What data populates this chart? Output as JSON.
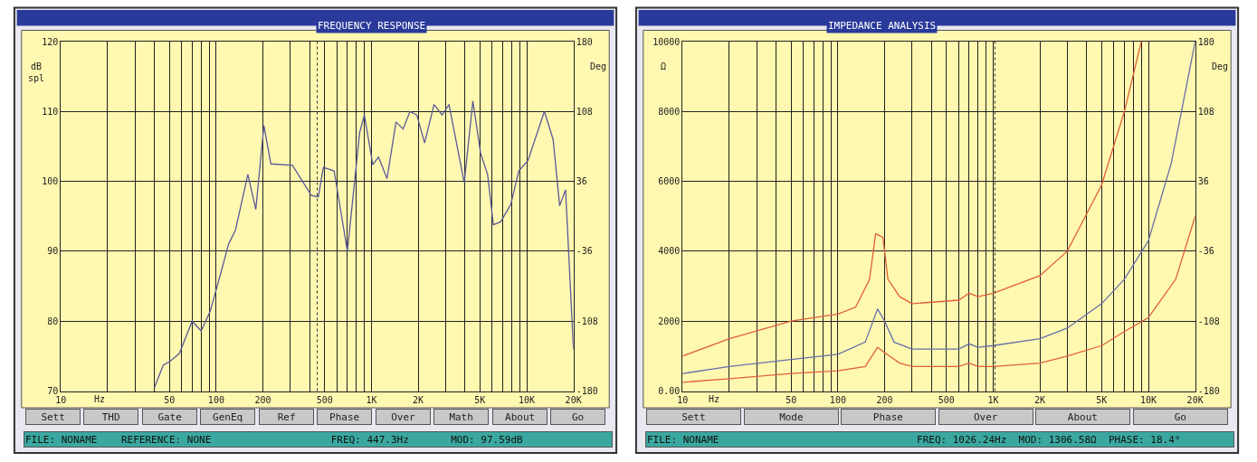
{
  "chart_data": [
    {
      "type": "line",
      "title": "FREQUENCY RESPONSE",
      "xlabel": "Hz",
      "ylabel": "dB\nspl",
      "y2label": "Deg",
      "log": "x",
      "grid": true,
      "marker": "none",
      "line_style": "solid",
      "xlim": [
        10,
        20000
      ],
      "xticks": [
        10,
        {
          "value": 20,
          "label": null
        },
        {
          "value": 30,
          "label": null
        },
        {
          "value": 40,
          "label": null
        },
        50,
        {
          "value": 60,
          "label": null
        },
        {
          "value": 70,
          "label": null
        },
        {
          "value": 80,
          "label": null
        },
        {
          "value": 90,
          "label": null
        },
        100,
        200,
        {
          "value": 300,
          "label": null
        },
        {
          "value": 400,
          "label": null
        },
        500,
        {
          "value": 600,
          "label": null
        },
        {
          "value": 700,
          "label": null
        },
        {
          "value": 800,
          "label": null
        },
        {
          "value": 900,
          "label": null
        },
        {
          "value": 1000,
          "label": "1K"
        },
        {
          "value": 2000,
          "label": "2K"
        },
        {
          "value": 3000,
          "label": null
        },
        {
          "value": 4000,
          "label": null
        },
        {
          "value": 5000,
          "label": "5K"
        },
        {
          "value": 6000,
          "label": null
        },
        {
          "value": 7000,
          "label": null
        },
        {
          "value": 8000,
          "label": null
        },
        {
          "value": 9000,
          "label": null
        },
        {
          "value": 10000,
          "label": "10K"
        },
        {
          "value": 20000,
          "label": "20K"
        }
      ],
      "ylim": [
        70,
        120
      ],
      "yticks": [
        70,
        80,
        90,
        100,
        110,
        120
      ],
      "y2lim": [
        -180,
        180
      ],
      "y2ticks": [
        -180,
        -108,
        -36,
        36,
        108,
        180
      ],
      "ref_lines": [
        {
          "axis": "x",
          "value": 447.3,
          "color": "#333333",
          "line_style": "dotted"
        }
      ],
      "series": [
        {
          "color": "#5a5a9a",
          "x": [
            40,
            45.6,
            50.8,
            58,
            70,
            80,
            91.5,
            109,
            120,
            133,
            160,
            180,
            203,
            225,
            310,
            410,
            455,
            490,
            575,
            700,
            840,
            900,
            1020,
            1110,
            1260,
            1440,
            1600,
            1770,
            1960,
            2200,
            2530,
            2850,
            3160,
            3960,
            4500,
            5050,
            5600,
            6100,
            6800,
            7900,
            8900,
            10200,
            13000,
            14800,
            16300,
            17800,
            20000
          ],
          "values": [
            70.5,
            73.7,
            74.3,
            75.4,
            80,
            78.6,
            81.4,
            87.5,
            91,
            93,
            101,
            96,
            108,
            102.5,
            102.3,
            98,
            97.8,
            102,
            101.5,
            90,
            107,
            109.5,
            102.4,
            103.5,
            100.4,
            108.5,
            107.5,
            110,
            109.5,
            105.5,
            111,
            109.5,
            111,
            99.8,
            111.5,
            104,
            101,
            93.8,
            94.2,
            96.7,
            101.5,
            103,
            110,
            106,
            96.5,
            98.8,
            76
          ]
        }
      ],
      "annotations": [
        "Sett",
        "THD",
        "Gate",
        "GenEq",
        "Ref",
        "Phase",
        "Over",
        "Math",
        "About",
        "Go",
        "FILE: NONAME    REFERENCE: NONE                    FREQ: 447.3Hz       MOD: 97.59dB"
      ]
    },
    {
      "type": "line",
      "title": "IMPEDANCE ANALYSIS",
      "xlabel": "Hz",
      "ylabel": "Ω",
      "y2label": "Deg",
      "log": "x",
      "grid": true,
      "marker": "none",
      "line_style": "solid",
      "xlim": [
        10,
        20000
      ],
      "xticks": [
        10,
        {
          "value": 20,
          "label": null
        },
        {
          "value": 30,
          "label": null
        },
        {
          "value": 40,
          "label": null
        },
        50,
        {
          "value": 60,
          "label": null
        },
        {
          "value": 70,
          "label": null
        },
        {
          "value": 80,
          "label": null
        },
        {
          "value": 90,
          "label": null
        },
        100,
        200,
        {
          "value": 300,
          "label": null
        },
        {
          "value": 400,
          "label": null
        },
        500,
        {
          "value": 600,
          "label": null
        },
        {
          "value": 700,
          "label": null
        },
        {
          "value": 800,
          "label": null
        },
        {
          "value": 900,
          "label": null
        },
        {
          "value": 1000,
          "label": "1K"
        },
        {
          "value": 2000,
          "label": "2K"
        },
        {
          "value": 3000,
          "label": null
        },
        {
          "value": 4000,
          "label": null
        },
        {
          "value": 5000,
          "label": "5K"
        },
        {
          "value": 6000,
          "label": null
        },
        {
          "value": 7000,
          "label": null
        },
        {
          "value": 8000,
          "label": null
        },
        {
          "value": 9000,
          "label": null
        },
        {
          "value": 10000,
          "label": "10K"
        },
        {
          "value": 20000,
          "label": "20K"
        }
      ],
      "ylim": [
        0,
        10000
      ],
      "yticks": [
        {
          "value": 0,
          "label": "0.00"
        },
        2000,
        4000,
        6000,
        8000,
        10000
      ],
      "y2lim": [
        -180,
        180
      ],
      "y2ticks": [
        -180,
        -108,
        -36,
        36,
        108,
        180
      ],
      "ref_lines": [
        {
          "axis": "x",
          "value": 1026.24,
          "color": "#333333",
          "line_style": "dotted"
        }
      ],
      "series": [
        {
          "color": "#e0603a",
          "x": [
            10,
            20,
            50,
            100,
            130,
            160,
            175,
            195,
            210,
            250,
            300,
            600,
            700,
            800,
            1000,
            2000,
            3000,
            5000,
            7000,
            9000
          ],
          "values": [
            1000,
            1500,
            2000,
            2200,
            2400,
            3200,
            4500,
            4400,
            3200,
            2700,
            2500,
            2600,
            2800,
            2700,
            2800,
            3300,
            4000,
            5900,
            8000,
            10000
          ]
        },
        {
          "color": "#6670a8",
          "x": [
            10,
            20,
            50,
            100,
            150,
            180,
            200,
            230,
            300,
            600,
            700,
            800,
            1000,
            2000,
            3000,
            5000,
            7000,
            10000,
            14000,
            17000,
            20000
          ],
          "values": [
            500,
            700,
            900,
            1050,
            1400,
            2350,
            2000,
            1400,
            1200,
            1200,
            1350,
            1250,
            1300,
            1500,
            1800,
            2500,
            3200,
            4300,
            6500,
            8400,
            10000
          ]
        },
        {
          "color": "#e0603a",
          "x": [
            10,
            20,
            50,
            100,
            150,
            180,
            200,
            250,
            300,
            600,
            700,
            800,
            1000,
            2000,
            3000,
            5000,
            7000,
            10000,
            15000,
            20000
          ],
          "values": [
            250,
            350,
            500,
            580,
            700,
            1250,
            1100,
            800,
            700,
            700,
            800,
            700,
            700,
            800,
            1000,
            1300,
            1700,
            2100,
            3200,
            5000
          ]
        }
      ],
      "annotations": [
        "Sett",
        "Mode",
        "Phase",
        "Over",
        "About",
        "Go",
        "FILE: NONAME                                 FREQ: 1026.24Hz  MOD: 1306.58Ω  PHASE: 18.4°"
      ]
    }
  ]
}
